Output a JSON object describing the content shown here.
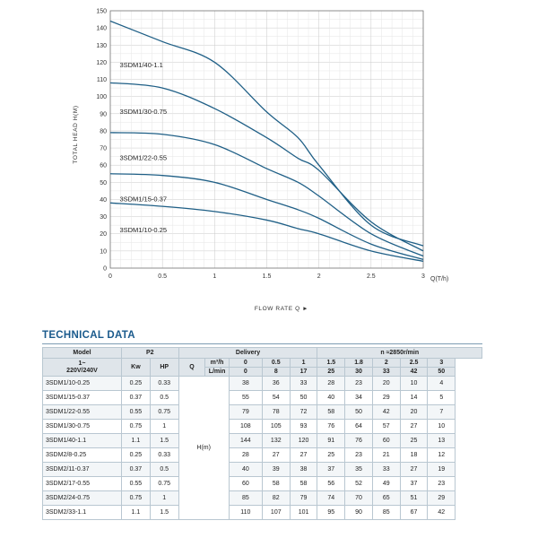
{
  "chart_data": {
    "type": "line",
    "title": "",
    "xlabel": "FLOW RATE Q ►",
    "ylabel": "TOTAL HEAD H(M)",
    "x_unit_label": "Q(T/h)",
    "xlim": [
      0,
      3
    ],
    "ylim": [
      0,
      150
    ],
    "x_ticks": [
      0,
      0.5,
      1,
      1.5,
      2,
      2.5,
      3
    ],
    "x_tick_labels": [
      "0",
      "0.5",
      "1",
      "1.5",
      "2",
      "2.5",
      "3"
    ],
    "y_ticks": [
      0,
      10,
      20,
      30,
      40,
      50,
      60,
      70,
      80,
      90,
      100,
      110,
      120,
      130,
      140,
      150
    ],
    "grid": true,
    "x": [
      0,
      0.5,
      1,
      1.5,
      1.8,
      2,
      2.5,
      3
    ],
    "series": [
      {
        "name": "3SDM1/40-1.1",
        "values": [
          144,
          132,
          120,
          91,
          76,
          60,
          25,
          13
        ]
      },
      {
        "name": "3SDM1/30-0.75",
        "values": [
          108,
          105,
          93,
          76,
          64,
          57,
          27,
          10
        ]
      },
      {
        "name": "3SDM1/22-0.55",
        "values": [
          79,
          78,
          72,
          58,
          50,
          42,
          20,
          7
        ]
      },
      {
        "name": "3SDM1/15-0.37",
        "values": [
          55,
          54,
          50,
          40,
          34,
          29,
          14,
          5
        ]
      },
      {
        "name": "3SDM1/10-0.25",
        "values": [
          38,
          36,
          33,
          28,
          23,
          20,
          10,
          4
        ]
      }
    ],
    "line_color": "#1f5f86"
  },
  "technical_data": {
    "title": "TECHNICAL DATA",
    "header": {
      "model": "Model",
      "p2": "P2",
      "delivery": "Delivery",
      "speed": "n ≈2850r/min",
      "voltage": "1~\n220V/240V",
      "kw": "Kw",
      "hp": "HP",
      "q": "Q",
      "unit_m3h": "m³/h",
      "unit_lmin": "L/min",
      "m3h": [
        "0",
        "0.5",
        "1",
        "1.5",
        "1.8",
        "2",
        "2.5",
        "3"
      ],
      "lmin": [
        "0",
        "8",
        "17",
        "25",
        "30",
        "33",
        "42",
        "50"
      ]
    },
    "head_unit": "H(m)",
    "rows": [
      {
        "model": "3SDM1/10-0.25",
        "kw": "0.25",
        "hp": "0.33",
        "heads": [
          "38",
          "36",
          "33",
          "28",
          "23",
          "20",
          "10",
          "4"
        ]
      },
      {
        "model": "3SDM1/15-0.37",
        "kw": "0.37",
        "hp": "0.5",
        "heads": [
          "55",
          "54",
          "50",
          "40",
          "34",
          "29",
          "14",
          "5"
        ]
      },
      {
        "model": "3SDM1/22-0.55",
        "kw": "0.55",
        "hp": "0.75",
        "heads": [
          "79",
          "78",
          "72",
          "58",
          "50",
          "42",
          "20",
          "7"
        ]
      },
      {
        "model": "3SDM1/30-0.75",
        "kw": "0.75",
        "hp": "1",
        "heads": [
          "108",
          "105",
          "93",
          "76",
          "64",
          "57",
          "27",
          "10"
        ]
      },
      {
        "model": "3SDM1/40-1.1",
        "kw": "1.1",
        "hp": "1.5",
        "heads": [
          "144",
          "132",
          "120",
          "91",
          "76",
          "60",
          "25",
          "13"
        ]
      },
      {
        "model": "3SDM2/8-0.25",
        "kw": "0.25",
        "hp": "0.33",
        "heads": [
          "28",
          "27",
          "27",
          "25",
          "23",
          "21",
          "18",
          "12"
        ]
      },
      {
        "model": "3SDM2/11-0.37",
        "kw": "0.37",
        "hp": "0.5",
        "heads": [
          "40",
          "39",
          "38",
          "37",
          "35",
          "33",
          "27",
          "19"
        ]
      },
      {
        "model": "3SDM2/17-0.55",
        "kw": "0.55",
        "hp": "0.75",
        "heads": [
          "60",
          "58",
          "58",
          "56",
          "52",
          "49",
          "37",
          "23"
        ]
      },
      {
        "model": "3SDM2/24-0.75",
        "kw": "0.75",
        "hp": "1",
        "heads": [
          "85",
          "82",
          "79",
          "74",
          "70",
          "65",
          "51",
          "29"
        ]
      },
      {
        "model": "3SDM2/33-1.1",
        "kw": "1.1",
        "hp": "1.5",
        "heads": [
          "110",
          "107",
          "101",
          "95",
          "90",
          "85",
          "67",
          "42"
        ]
      }
    ]
  }
}
